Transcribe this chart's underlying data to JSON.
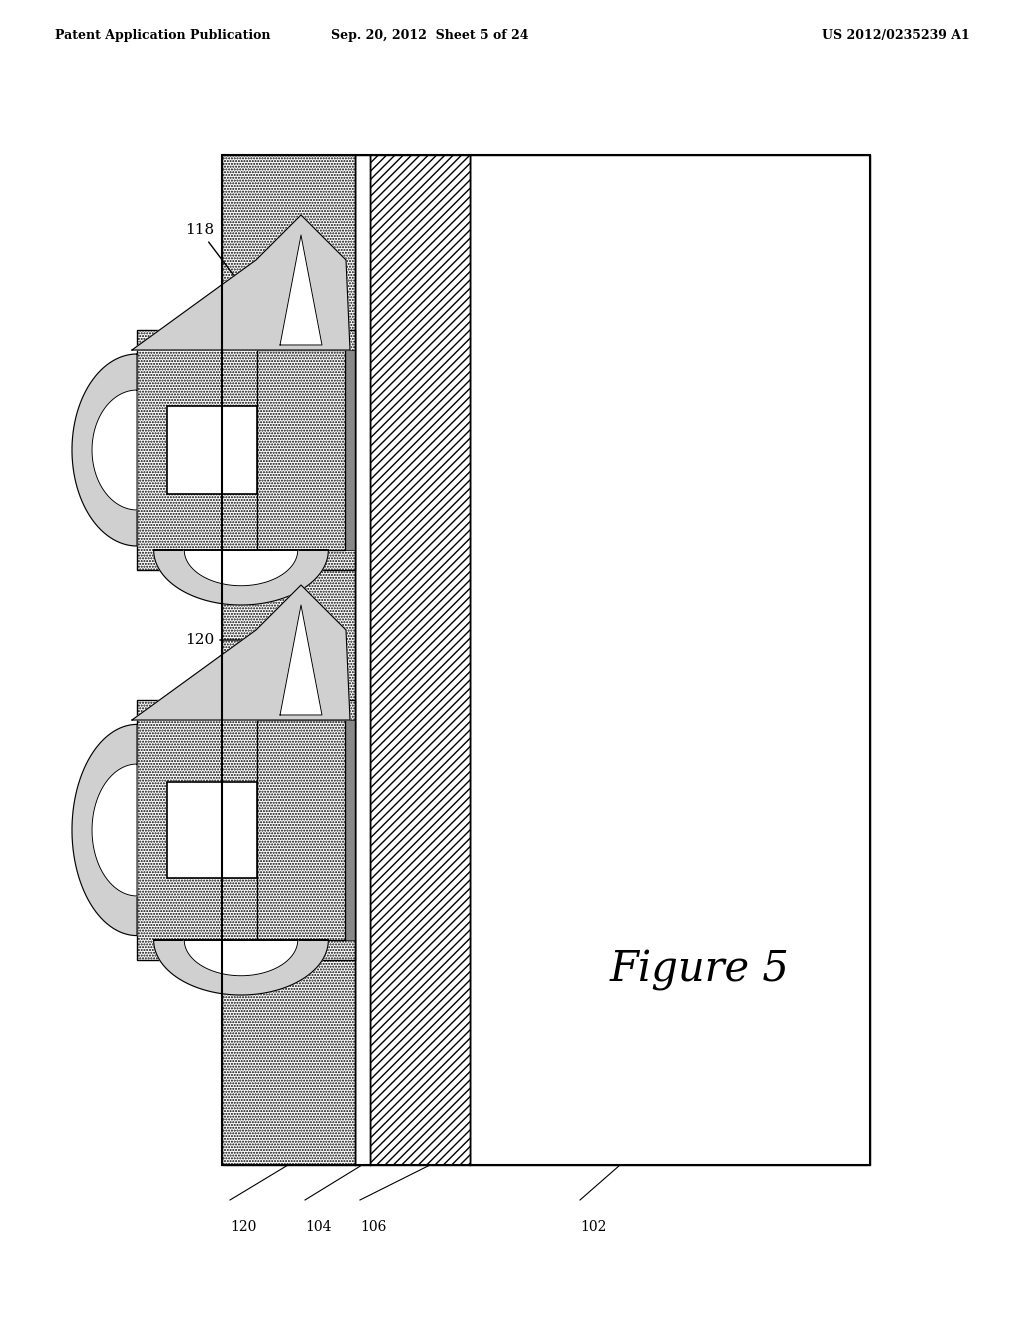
{
  "title": "Figure 5",
  "header_left": "Patent Application Publication",
  "header_mid": "Sep. 20, 2012  Sheet 5 of 24",
  "header_right": "US 2012/0235239 A1",
  "bg_color": "#ffffff",
  "label_118": "118",
  "label_120": "120",
  "label_102": "102",
  "label_104": "104",
  "label_106": "106",
  "label_120b": "120",
  "fig_label": "Figure 5"
}
